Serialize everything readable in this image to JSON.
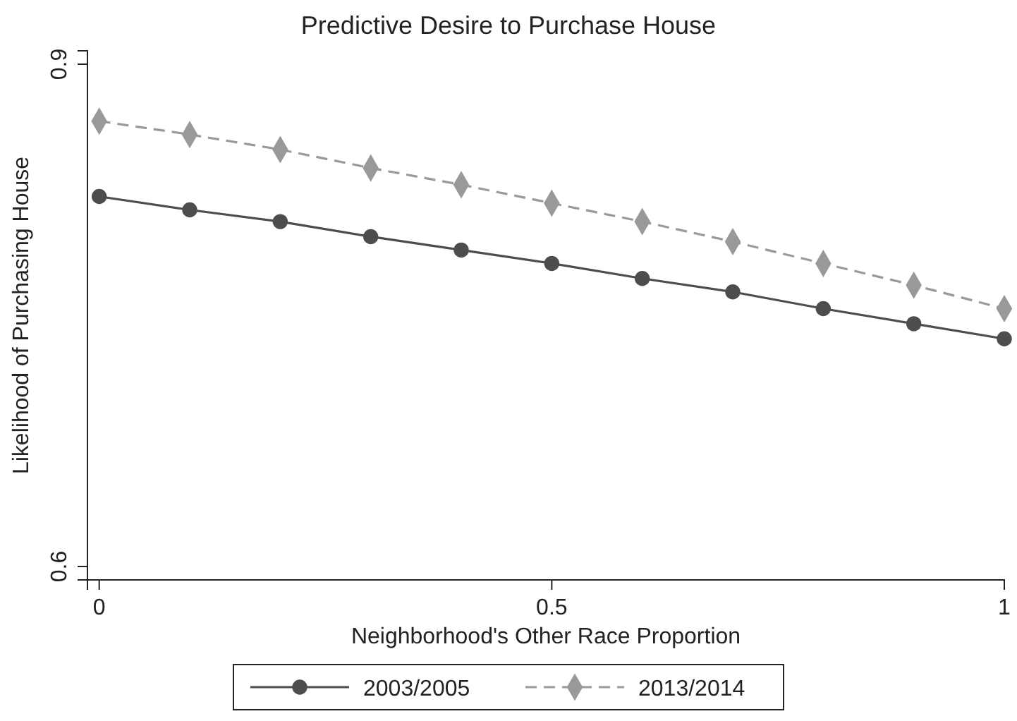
{
  "chart_data": {
    "type": "line",
    "title": "Predictive Desire to Purchase House",
    "xlabel": "Neighborhood's Other Race Proportion",
    "ylabel": "Likelihood of Purchasing House",
    "x": [
      0,
      0.1,
      0.2,
      0.3,
      0.4,
      0.5,
      0.6,
      0.7,
      0.8,
      0.9,
      1
    ],
    "series": [
      {
        "name": "2003/2005",
        "color": "#4d4d4d",
        "marker": "circle",
        "line_style": "solid",
        "values": [
          0.821,
          0.813,
          0.806,
          0.797,
          0.789,
          0.781,
          0.772,
          0.764,
          0.754,
          0.745,
          0.736
        ]
      },
      {
        "name": "2013/2014",
        "color": "#999999",
        "marker": "diamond",
        "line_style": "dashed",
        "values": [
          0.866,
          0.858,
          0.849,
          0.838,
          0.828,
          0.817,
          0.806,
          0.794,
          0.781,
          0.768,
          0.754
        ]
      }
    ],
    "xlim": [
      -0.013,
      1
    ],
    "ylim": [
      0.592,
      0.908
    ],
    "xticks": [
      0,
      0.5,
      1
    ],
    "yticks": [
      0.6,
      0.9
    ],
    "grid": false,
    "legend": "bottom"
  }
}
